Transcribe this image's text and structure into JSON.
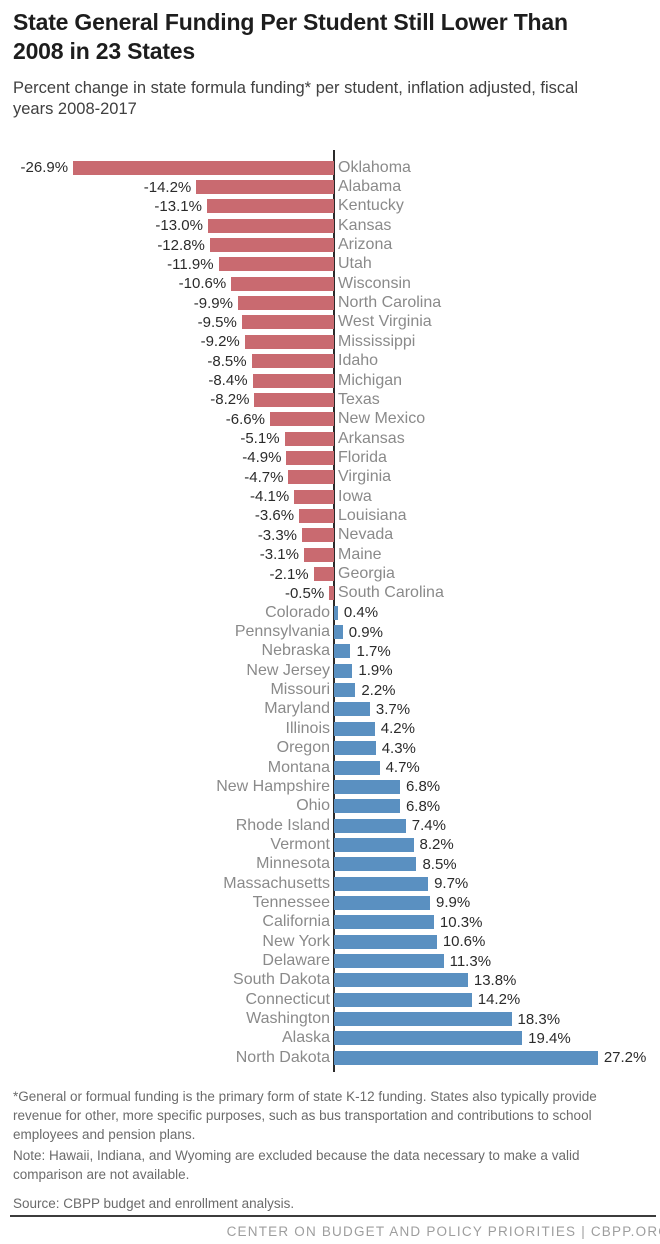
{
  "header": {
    "title": "State General Funding Per Student Still Lower Than 2008 in 23 States",
    "subtitle": "Percent change in state formula funding* per student, inflation adjusted, fiscal years 2008-2017"
  },
  "chart_data": {
    "type": "bar",
    "orientation": "horizontal_diverging",
    "unit": "percent",
    "xlim": [
      -30,
      30
    ],
    "negative_color": "#c96a70",
    "positive_color": "#5a90c1",
    "axis_color": "#2b2a2a",
    "series": [
      {
        "state": "Oklahoma",
        "value": -26.9,
        "label": "-26.9%"
      },
      {
        "state": "Alabama",
        "value": -14.2,
        "label": "-14.2%"
      },
      {
        "state": "Kentucky",
        "value": -13.1,
        "label": "-13.1%"
      },
      {
        "state": "Kansas",
        "value": -13.0,
        "label": "-13.0%"
      },
      {
        "state": "Arizona",
        "value": -12.8,
        "label": "-12.8%"
      },
      {
        "state": "Utah",
        "value": -11.9,
        "label": "-11.9%"
      },
      {
        "state": "Wisconsin",
        "value": -10.6,
        "label": "-10.6%"
      },
      {
        "state": "North Carolina",
        "value": -9.9,
        "label": "-9.9%"
      },
      {
        "state": "West Virginia",
        "value": -9.5,
        "label": "-9.5%"
      },
      {
        "state": "Mississippi",
        "value": -9.2,
        "label": "-9.2%"
      },
      {
        "state": "Idaho",
        "value": -8.5,
        "label": "-8.5%"
      },
      {
        "state": "Michigan",
        "value": -8.4,
        "label": "-8.4%"
      },
      {
        "state": "Texas",
        "value": -8.2,
        "label": "-8.2%"
      },
      {
        "state": "New Mexico",
        "value": -6.6,
        "label": "-6.6%"
      },
      {
        "state": "Arkansas",
        "value": -5.1,
        "label": "-5.1%"
      },
      {
        "state": "Florida",
        "value": -4.9,
        "label": "-4.9%"
      },
      {
        "state": "Virginia",
        "value": -4.7,
        "label": "-4.7%"
      },
      {
        "state": "Iowa",
        "value": -4.1,
        "label": "-4.1%"
      },
      {
        "state": "Louisiana",
        "value": -3.6,
        "label": "-3.6%"
      },
      {
        "state": "Nevada",
        "value": -3.3,
        "label": "-3.3%"
      },
      {
        "state": "Maine",
        "value": -3.1,
        "label": "-3.1%"
      },
      {
        "state": "Georgia",
        "value": -2.1,
        "label": "-2.1%"
      },
      {
        "state": "South Carolina",
        "value": -0.5,
        "label": "-0.5%"
      },
      {
        "state": "Colorado",
        "value": 0.4,
        "label": "0.4%"
      },
      {
        "state": "Pennsylvania",
        "value": 0.9,
        "label": "0.9%"
      },
      {
        "state": "Nebraska",
        "value": 1.7,
        "label": "1.7%"
      },
      {
        "state": "New Jersey",
        "value": 1.9,
        "label": "1.9%"
      },
      {
        "state": "Missouri",
        "value": 2.2,
        "label": "2.2%"
      },
      {
        "state": "Maryland",
        "value": 3.7,
        "label": "3.7%"
      },
      {
        "state": "Illinois",
        "value": 4.2,
        "label": "4.2%"
      },
      {
        "state": "Oregon",
        "value": 4.3,
        "label": "4.3%"
      },
      {
        "state": "Montana",
        "value": 4.7,
        "label": "4.7%"
      },
      {
        "state": "New Hampshire",
        "value": 6.8,
        "label": "6.8%"
      },
      {
        "state": "Ohio",
        "value": 6.8,
        "label": "6.8%"
      },
      {
        "state": "Rhode Island",
        "value": 7.4,
        "label": "7.4%"
      },
      {
        "state": "Vermont",
        "value": 8.2,
        "label": "8.2%"
      },
      {
        "state": "Minnesota",
        "value": 8.5,
        "label": "8.5%"
      },
      {
        "state": "Massachusetts",
        "value": 9.7,
        "label": "9.7%"
      },
      {
        "state": "Tennessee",
        "value": 9.9,
        "label": "9.9%"
      },
      {
        "state": "California",
        "value": 10.3,
        "label": "10.3%"
      },
      {
        "state": "New York",
        "value": 10.6,
        "label": "10.6%"
      },
      {
        "state": "Delaware",
        "value": 11.3,
        "label": "11.3%"
      },
      {
        "state": "South Dakota",
        "value": 13.8,
        "label": "13.8%"
      },
      {
        "state": "Connecticut",
        "value": 14.2,
        "label": "14.2%"
      },
      {
        "state": "Washington",
        "value": 18.3,
        "label": "18.3%"
      },
      {
        "state": "Alaska",
        "value": 19.4,
        "label": "19.4%"
      },
      {
        "state": "North Dakota",
        "value": 27.2,
        "label": "27.2%"
      }
    ]
  },
  "footnotes": {
    "asterisk": "*General or formual funding is the primary form of state K-12 funding. States also typically provide revenue for other, more specific purposes, such as bus transportation and contributions to school employees and pension plans.",
    "note": "Note: Hawaii, Indiana, and Wyoming are excluded because the data necessary to make a valid comparison are not available.",
    "source": "Source: CBPP budget and enrollment analysis."
  },
  "footer": {
    "text": "CENTER ON BUDGET AND POLICY PRIORITIES | CBPP.ORG"
  }
}
